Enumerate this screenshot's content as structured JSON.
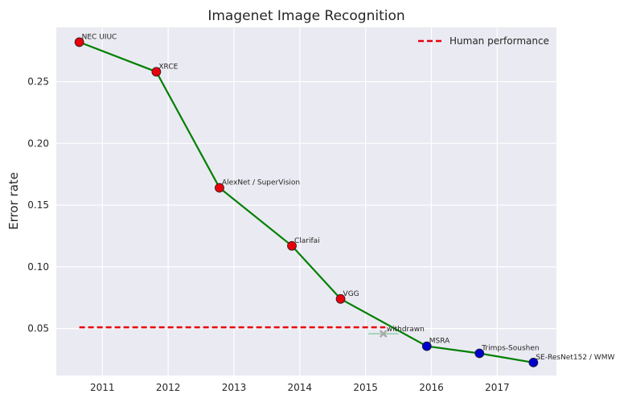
{
  "chart_data": {
    "type": "line",
    "title": "Imagenet Image Recognition",
    "xlabel": "",
    "ylabel": "Error rate",
    "xlim": [
      2010.3,
      2017.9
    ],
    "ylim": [
      0.012,
      0.294
    ],
    "x_ticks": [
      2011,
      2012,
      2013,
      2014,
      2015,
      2016,
      2017
    ],
    "y_ticks": [
      0.05,
      0.1,
      0.15,
      0.2,
      0.25
    ],
    "y_tick_labels": [
      "0.05",
      "0.10",
      "0.15",
      "0.20",
      "0.25"
    ],
    "grid": true,
    "legend_position": "top-right",
    "series": [
      {
        "name": "",
        "color": "#008000",
        "points": [
          {
            "x": 2010.65,
            "y": 0.282,
            "label": "NEC UIUC",
            "color": "#e8000b"
          },
          {
            "x": 2011.82,
            "y": 0.258,
            "label": "XRCE",
            "color": "#e8000b"
          },
          {
            "x": 2012.78,
            "y": 0.164,
            "label": "AlexNet / SuperVision",
            "color": "#e8000b"
          },
          {
            "x": 2013.88,
            "y": 0.117,
            "label": "Clarifai",
            "color": "#e8000b"
          },
          {
            "x": 2014.62,
            "y": 0.074,
            "label": "VGG",
            "color": "#e8000b"
          },
          {
            "x": 2015.93,
            "y": 0.0357,
            "label": "MSRA",
            "color": "#0000cc"
          },
          {
            "x": 2016.73,
            "y": 0.0299,
            "label": "Trimps-Soushen",
            "color": "#0000cc"
          },
          {
            "x": 2017.55,
            "y": 0.0225,
            "label": "SE-ResNet152 / WMW",
            "color": "#0000cc"
          }
        ]
      }
    ],
    "withdrawn": {
      "x": 2015.27,
      "y": 0.0458,
      "x_err": 0.23,
      "label": "withdrawn",
      "color": "#aaaaaa",
      "err_color": "#8fd0a8"
    },
    "reference_line": {
      "name": "Human performance",
      "y": 0.051,
      "x_range": [
        2010.65,
        2015.3
      ],
      "color": "#e8000b"
    }
  }
}
